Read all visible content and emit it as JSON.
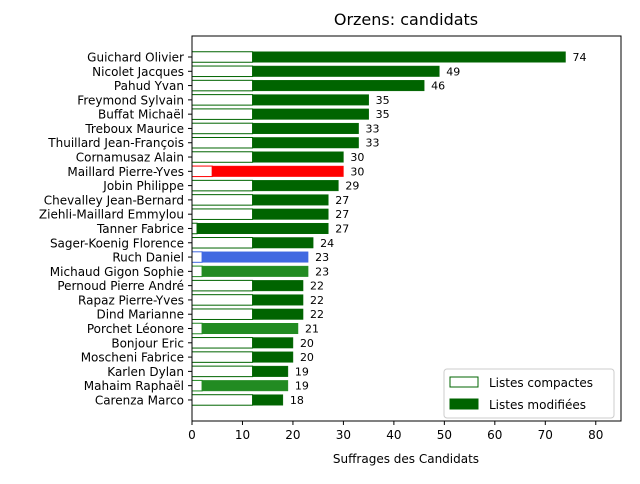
{
  "chart_data": {
    "type": "bar",
    "orientation": "horizontal",
    "stacked": true,
    "title": "Orzens: candidats",
    "xlabel": "Suffrages des Candidats",
    "ylabel": "",
    "xlim": [
      0,
      85
    ],
    "xticks": [
      0,
      10,
      20,
      30,
      40,
      50,
      60,
      70,
      80
    ],
    "grid": false,
    "legend_position": "bottom-right",
    "legend": [
      {
        "label": "Listes compactes",
        "fill": "#ffffff",
        "stroke": "#006400"
      },
      {
        "label": "Listes modifiées",
        "fill": "#006400",
        "stroke": "#006400"
      }
    ],
    "candidates": [
      {
        "name": "Guichard Olivier",
        "compact": 12,
        "modified": 62,
        "total": 74,
        "color": "#006400"
      },
      {
        "name": "Nicolet Jacques",
        "compact": 12,
        "modified": 37,
        "total": 49,
        "color": "#006400"
      },
      {
        "name": "Pahud Yvan",
        "compact": 12,
        "modified": 34,
        "total": 46,
        "color": "#006400"
      },
      {
        "name": "Freymond Sylvain",
        "compact": 12,
        "modified": 23,
        "total": 35,
        "color": "#006400"
      },
      {
        "name": "Buffat Michaël",
        "compact": 12,
        "modified": 23,
        "total": 35,
        "color": "#006400"
      },
      {
        "name": "Treboux Maurice",
        "compact": 12,
        "modified": 21,
        "total": 33,
        "color": "#006400"
      },
      {
        "name": "Thuillard Jean-François",
        "compact": 12,
        "modified": 21,
        "total": 33,
        "color": "#006400"
      },
      {
        "name": "Cornamusaz Alain",
        "compact": 12,
        "modified": 18,
        "total": 30,
        "color": "#006400"
      },
      {
        "name": "Maillard Pierre-Yves",
        "compact": 4,
        "modified": 26,
        "total": 30,
        "color": "#ff0000"
      },
      {
        "name": "Jobin Philippe",
        "compact": 12,
        "modified": 17,
        "total": 29,
        "color": "#006400"
      },
      {
        "name": "Chevalley Jean-Bernard",
        "compact": 12,
        "modified": 15,
        "total": 27,
        "color": "#006400"
      },
      {
        "name": "Ziehli-Maillard Emmylou",
        "compact": 12,
        "modified": 15,
        "total": 27,
        "color": "#006400"
      },
      {
        "name": "Tanner Fabrice",
        "compact": 1,
        "modified": 26,
        "total": 27,
        "color": "#006400"
      },
      {
        "name": "Sager-Koenig Florence",
        "compact": 12,
        "modified": 12,
        "total": 24,
        "color": "#006400"
      },
      {
        "name": "Ruch Daniel",
        "compact": 2,
        "modified": 21,
        "total": 23,
        "color": "#4169e1"
      },
      {
        "name": "Michaud Gigon Sophie",
        "compact": 2,
        "modified": 21,
        "total": 23,
        "color": "#228b22"
      },
      {
        "name": "Pernoud Pierre André",
        "compact": 12,
        "modified": 10,
        "total": 22,
        "color": "#006400"
      },
      {
        "name": "Rapaz Pierre-Yves",
        "compact": 12,
        "modified": 10,
        "total": 22,
        "color": "#006400"
      },
      {
        "name": "Dind Marianne",
        "compact": 12,
        "modified": 10,
        "total": 22,
        "color": "#006400"
      },
      {
        "name": "Porchet Léonore",
        "compact": 2,
        "modified": 19,
        "total": 21,
        "color": "#228b22"
      },
      {
        "name": "Bonjour Eric",
        "compact": 12,
        "modified": 8,
        "total": 20,
        "color": "#006400"
      },
      {
        "name": "Moscheni Fabrice",
        "compact": 12,
        "modified": 8,
        "total": 20,
        "color": "#006400"
      },
      {
        "name": "Karlen Dylan",
        "compact": 12,
        "modified": 7,
        "total": 19,
        "color": "#006400"
      },
      {
        "name": "Mahaim Raphaël",
        "compact": 2,
        "modified": 17,
        "total": 19,
        "color": "#228b22"
      },
      {
        "name": "Carenza Marco",
        "compact": 12,
        "modified": 6,
        "total": 18,
        "color": "#006400"
      }
    ]
  }
}
